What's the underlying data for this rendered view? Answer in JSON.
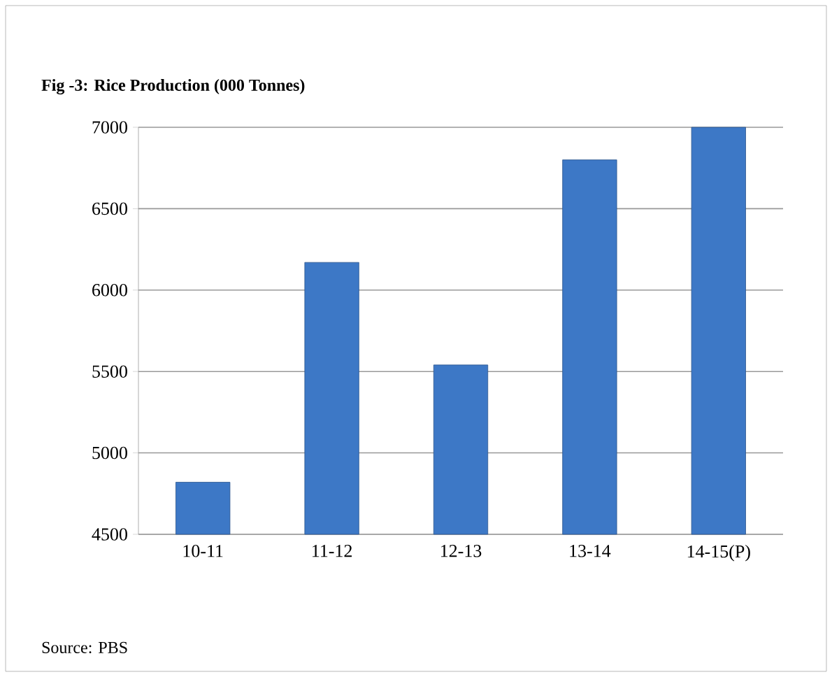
{
  "chart_data": {
    "type": "bar",
    "title": "Fig -3: Rice Production (000 Tonnes)",
    "categories": [
      "10-11",
      "11-12",
      "12-13",
      "13-14",
      "14-15(P)"
    ],
    "values": [
      4820,
      6170,
      5540,
      6800,
      7000
    ],
    "color": "#3d78c6",
    "ylim": [
      4500,
      7000
    ],
    "yticks": [
      4500,
      5000,
      5500,
      6000,
      6500,
      7000
    ],
    "grid": "y",
    "annotations": [
      "Source: PBS"
    ]
  }
}
